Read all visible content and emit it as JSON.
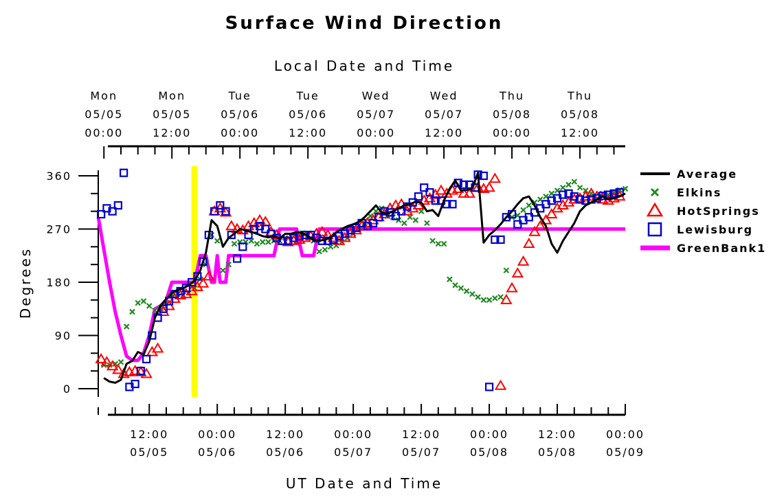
{
  "chart_data": {
    "type": "scatter",
    "title": "Surface Wind Direction",
    "top_axis_title": "Local Date and Time",
    "xlabel": "UT Date and Time",
    "ylabel": "Degrees",
    "ylim": [
      0,
      360
    ],
    "yticks": [
      0,
      90,
      180,
      270,
      360
    ],
    "top_ticks": [
      {
        "day": "Mon",
        "date": "05/05",
        "time": "00:00"
      },
      {
        "day": "Mon",
        "date": "05/05",
        "time": "12:00"
      },
      {
        "day": "Tue",
        "date": "05/06",
        "time": "00:00"
      },
      {
        "day": "Tue",
        "date": "05/06",
        "time": "12:00"
      },
      {
        "day": "Wed",
        "date": "05/07",
        "time": "00:00"
      },
      {
        "day": "Wed",
        "date": "05/07",
        "time": "12:00"
      },
      {
        "day": "Thu",
        "date": "05/08",
        "time": "00:00"
      },
      {
        "day": "Thu",
        "date": "05/08",
        "time": "12:00"
      }
    ],
    "bottom_ticks": [
      {
        "time": "12:00",
        "date": "05/05"
      },
      {
        "time": "00:00",
        "date": "05/06"
      },
      {
        "time": "12:00",
        "date": "05/06"
      },
      {
        "time": "00:00",
        "date": "05/07"
      },
      {
        "time": "12:00",
        "date": "05/07"
      },
      {
        "time": "00:00",
        "date": "05/08"
      },
      {
        "time": "12:00",
        "date": "05/08"
      },
      {
        "time": "00:00",
        "date": "05/09"
      }
    ],
    "x_unit": "hours UT from 2025-05-05 00:00",
    "xlim": [
      3,
      96
    ],
    "marker_line": {
      "x": 20,
      "color": "#ffff00"
    },
    "legend_position": "right",
    "series": [
      {
        "name": "Average",
        "kind": "line",
        "color": "#000000",
        "x": [
          4,
          5,
          6,
          7,
          8,
          9,
          10,
          11,
          12,
          13,
          14,
          15,
          16,
          17,
          18,
          19,
          20,
          21,
          22,
          23,
          24,
          25,
          26,
          27,
          28,
          29,
          30,
          31,
          32,
          33,
          34,
          35,
          36,
          37,
          38,
          39,
          40,
          41,
          42,
          43,
          44,
          45,
          46,
          47,
          48,
          49,
          50,
          51,
          52,
          53,
          54,
          55,
          56,
          57,
          58,
          59,
          60,
          61,
          62,
          63,
          64,
          65,
          66,
          67,
          68,
          69,
          70,
          71,
          72,
          73,
          74,
          75,
          76,
          77,
          78,
          79,
          80,
          81,
          82,
          83,
          84,
          85,
          86,
          87,
          88,
          89,
          90,
          91,
          92,
          93,
          94,
          95,
          96
        ],
        "y": [
          18,
          12,
          10,
          15,
          42,
          47,
          62,
          58,
          80,
          120,
          140,
          152,
          162,
          167,
          170,
          175,
          183,
          200,
          230,
          285,
          275,
          240,
          255,
          262,
          270,
          268,
          265,
          262,
          258,
          256,
          258,
          254,
          262,
          262,
          265,
          263,
          258,
          252,
          250,
          252,
          255,
          265,
          270,
          275,
          278,
          282,
          290,
          300,
          310,
          298,
          296,
          300,
          305,
          310,
          312,
          316,
          315,
          300,
          302,
          292,
          318,
          338,
          352,
          335,
          336,
          338,
          365,
          247,
          260,
          268,
          278,
          290,
          300,
          312,
          322,
          325,
          310,
          290,
          275,
          245,
          230,
          250,
          265,
          280,
          300,
          310,
          315,
          320,
          325,
          320,
          322,
          325,
          330
        ]
      },
      {
        "name": "Elkins",
        "kind": "x",
        "color": "#228b22",
        "x": [
          4,
          5,
          6,
          7,
          8,
          9,
          10,
          11,
          12,
          13,
          14,
          15,
          16,
          17,
          18,
          19,
          20,
          21,
          22,
          23,
          24,
          25,
          26,
          27,
          28,
          29,
          30,
          31,
          32,
          33,
          34,
          35,
          36,
          37,
          38,
          39,
          40,
          41,
          42,
          43,
          44,
          45,
          46,
          47,
          48,
          49,
          50,
          51,
          52,
          53,
          54,
          55,
          56,
          57,
          58,
          59,
          60,
          61,
          62,
          63,
          64,
          65,
          66,
          67,
          68,
          69,
          70,
          71,
          72,
          73,
          74,
          75,
          76,
          77,
          78,
          79,
          80,
          81,
          82,
          83,
          84,
          85,
          86,
          87,
          88,
          89,
          90,
          91,
          92,
          93,
          94,
          95,
          96
        ],
        "y": [
          40,
          40,
          42,
          45,
          105,
          130,
          145,
          148,
          140,
          132,
          135,
          145,
          158,
          160,
          158,
          162,
          170,
          185,
          210,
          260,
          250,
          200,
          210,
          245,
          248,
          248,
          250,
          245,
          248,
          248,
          250,
          250,
          255,
          258,
          262,
          263,
          260,
          250,
          232,
          235,
          240,
          242,
          248,
          255,
          262,
          270,
          280,
          292,
          300,
          305,
          292,
          290,
          285,
          280,
          290,
          285,
          300,
          280,
          250,
          245,
          245,
          185,
          175,
          170,
          165,
          160,
          155,
          150,
          150,
          153,
          155,
          200,
          290,
          293,
          302,
          310,
          315,
          320,
          325,
          330,
          335,
          340,
          345,
          350,
          340,
          335,
          330,
          322,
          330,
          328,
          332,
          336,
          338
        ]
      },
      {
        "name": "HotSprings",
        "kind": "triangle",
        "color": "#ff0000",
        "x": [
          3.5,
          4.5,
          5.5,
          6.5,
          7.5,
          8.5,
          9.5,
          10.5,
          11.5,
          12.5,
          13.5,
          14.5,
          15.5,
          16.5,
          17.5,
          18.5,
          19.5,
          20.5,
          21.5,
          22.5,
          23.5,
          24.5,
          25.5,
          26.5,
          27.5,
          28.5,
          29.5,
          30.5,
          31.5,
          32.5,
          33.5,
          34.5,
          35.5,
          36.5,
          37.5,
          38.5,
          39.5,
          40.5,
          41.5,
          42.5,
          43.5,
          44.5,
          45.5,
          46.5,
          47.5,
          48.5,
          49.5,
          50.5,
          51.5,
          52.5,
          53.5,
          54.5,
          55.5,
          56.5,
          57.5,
          58.5,
          59.5,
          60.5,
          61.5,
          62.5,
          63.5,
          64.5,
          65.5,
          66.5,
          67.5,
          68.5,
          69.5,
          70,
          71,
          72,
          73,
          74,
          75,
          76,
          77,
          78,
          79,
          80,
          81,
          82,
          83,
          84,
          85,
          86,
          87,
          88,
          89,
          90,
          91,
          92,
          93,
          94,
          95
        ],
        "y": [
          50,
          45,
          38,
          32,
          25,
          28,
          30,
          28,
          25,
          62,
          68,
          130,
          140,
          152,
          158,
          160,
          165,
          172,
          178,
          190,
          300,
          305,
          298,
          275,
          270,
          268,
          275,
          280,
          285,
          282,
          265,
          260,
          250,
          248,
          250,
          252,
          255,
          258,
          262,
          265,
          260,
          255,
          250,
          255,
          262,
          268,
          275,
          280,
          285,
          290,
          295,
          305,
          310,
          312,
          300,
          305,
          310,
          318,
          322,
          328,
          335,
          330,
          335,
          338,
          330,
          330,
          340,
          340,
          338,
          340,
          355,
          5,
          150,
          170,
          195,
          215,
          245,
          265,
          275,
          285,
          295,
          305,
          310,
          315,
          320,
          322,
          325,
          330,
          325,
          320,
          318,
          322,
          325
        ]
      },
      {
        "name": "Lewisburg",
        "kind": "square",
        "color": "#0000cc",
        "x": [
          3.5,
          4.5,
          5.5,
          6.5,
          7.5,
          8.5,
          9.5,
          10.5,
          11.5,
          12.5,
          13.5,
          14.5,
          15.5,
          16.5,
          17.5,
          18.5,
          19.5,
          20.5,
          21.5,
          22.5,
          23.5,
          24.5,
          25.5,
          26.5,
          27.5,
          28.5,
          29.5,
          30.5,
          31.5,
          32.5,
          33.5,
          34.5,
          35.5,
          36.5,
          37.5,
          38.5,
          39.5,
          40.5,
          41.5,
          42.5,
          43.5,
          44.5,
          45.5,
          46.5,
          47.5,
          48.5,
          49.5,
          50.5,
          51.5,
          52.5,
          53.5,
          54.5,
          55.5,
          56.5,
          57.5,
          58.5,
          59.5,
          60.5,
          61.5,
          62.5,
          63.5,
          64.5,
          65.5,
          66.5,
          67.5,
          68.5,
          69.5,
          70,
          71,
          72,
          73,
          74,
          75,
          76,
          77,
          78,
          79,
          80,
          81,
          82,
          83,
          84,
          85,
          86,
          87,
          88,
          89,
          90,
          91,
          92,
          93,
          94,
          95
        ],
        "y": [
          295,
          305,
          300,
          310,
          365,
          3,
          8,
          30,
          50,
          90,
          120,
          135,
          148,
          160,
          165,
          170,
          180,
          190,
          215,
          260,
          300,
          310,
          300,
          260,
          220,
          240,
          260,
          270,
          275,
          270,
          262,
          255,
          250,
          250,
          255,
          258,
          260,
          260,
          255,
          250,
          250,
          252,
          258,
          262,
          268,
          272,
          280,
          275,
          280,
          290,
          300,
          298,
          292,
          300,
          308,
          315,
          325,
          340,
          332,
          318,
          318,
          312,
          312,
          348,
          345,
          345,
          340,
          362,
          360,
          3,
          252,
          252,
          290,
          295,
          278,
          285,
          290,
          298,
          305,
          312,
          318,
          322,
          328,
          330,
          325,
          320,
          318,
          320,
          322,
          326,
          328,
          330,
          332
        ]
      },
      {
        "name": "GreenBank1",
        "kind": "thick-line",
        "color": "#ff00ff",
        "x": [
          3,
          5,
          6,
          7,
          8,
          9,
          10,
          11,
          12,
          13,
          14,
          15,
          16,
          17,
          18,
          19,
          20,
          21,
          22,
          23,
          23.5,
          24,
          24.5,
          25,
          25.5,
          26,
          26.5,
          27,
          28,
          29,
          30,
          31,
          32,
          33,
          34,
          35,
          36,
          37,
          38,
          39,
          40,
          41,
          42,
          43,
          44,
          45,
          46,
          47,
          48,
          49,
          50,
          51,
          52,
          53,
          54,
          55,
          56,
          57,
          58,
          59,
          60,
          61,
          62,
          63,
          64,
          65,
          66,
          67,
          68,
          69,
          70,
          71,
          72,
          73,
          74,
          75,
          76,
          77,
          78,
          79,
          80,
          81,
          82,
          83,
          84,
          85,
          86,
          87,
          88,
          89,
          90,
          91,
          92,
          93,
          94,
          95,
          96
        ],
        "y": [
          290,
          180,
          130,
          90,
          55,
          48,
          48,
          60,
          90,
          135,
          140,
          150,
          180,
          180,
          180,
          180,
          180,
          225,
          225,
          180,
          180,
          225,
          180,
          180,
          180,
          225,
          225,
          225,
          225,
          225,
          225,
          225,
          225,
          225,
          225,
          270,
          270,
          270,
          270,
          225,
          225,
          225,
          270,
          270,
          270,
          270,
          270,
          270,
          270,
          270,
          270,
          270,
          270,
          270,
          270,
          270,
          270,
          270,
          270,
          270,
          270,
          270,
          270,
          270,
          270,
          270,
          270,
          270,
          270,
          270,
          270,
          270,
          270,
          270,
          270,
          270,
          270,
          270,
          270,
          270,
          270,
          270,
          270,
          270,
          270,
          270,
          270,
          270,
          270,
          270,
          270,
          270,
          270,
          270,
          270,
          270,
          270
        ]
      }
    ]
  }
}
